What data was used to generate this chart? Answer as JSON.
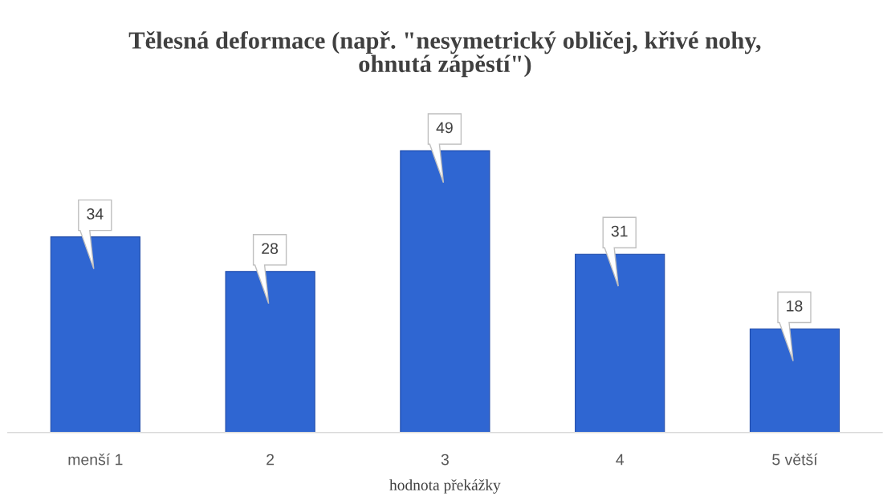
{
  "chart_data": {
    "type": "bar",
    "title": "Tělesná deformace (např. \"nesymetrický obličej, křivé nohy,\nohnutá zápěstí\")",
    "xlabel": "hodnota překážky",
    "categories": [
      "menší 1",
      "2",
      "3",
      "4",
      "5 větší"
    ],
    "values": [
      34,
      28,
      49,
      31,
      18
    ],
    "color": "#2f66d2",
    "data_labels": true,
    "tick_labels": "x",
    "grid": false,
    "legend": false
  }
}
